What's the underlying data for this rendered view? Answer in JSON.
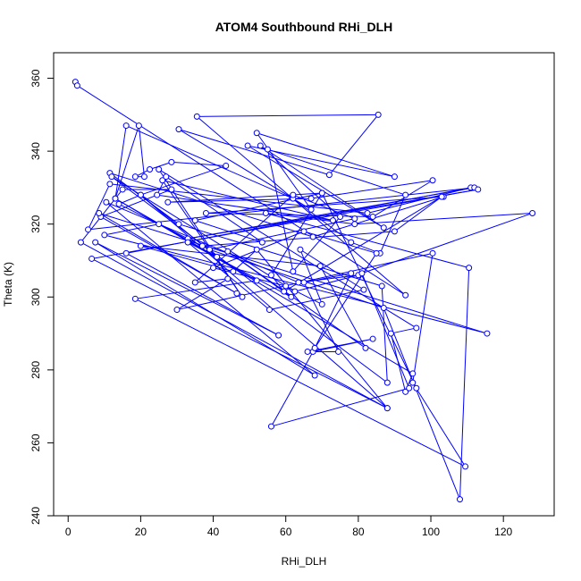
{
  "chart_data": {
    "type": "line",
    "title": "ATOM4 Southbound RHi_DLH",
    "xlabel": "RHi_DLH",
    "ylabel": "Theta (K)",
    "xlim": [
      -4,
      134
    ],
    "ylim": [
      240,
      367
    ],
    "xticks": [
      "0",
      "20",
      "40",
      "60",
      "80",
      "100",
      "120"
    ],
    "yticks": [
      "240",
      "260",
      "280",
      "300",
      "320",
      "340",
      "360"
    ],
    "xtick_values": [
      0,
      20,
      40,
      60,
      80,
      100,
      120
    ],
    "ytick_values": [
      240,
      260,
      280,
      300,
      320,
      340,
      360
    ],
    "grid": false,
    "color": "#0000ff",
    "marker": "open-circle",
    "series": [
      {
        "values": [
          [
            2,
            359
          ],
          [
            2.5,
            358
          ],
          [
            93,
            300.5
          ],
          [
            35.5,
            349.5
          ],
          [
            85.5,
            350
          ],
          [
            72,
            333.5
          ],
          [
            30.5,
            346
          ],
          [
            67,
            324
          ],
          [
            52,
            345
          ],
          [
            90,
            333
          ],
          [
            49.5,
            341.5
          ],
          [
            87,
            319
          ],
          [
            53,
            341.5
          ],
          [
            75,
            322
          ],
          [
            62,
            307
          ],
          [
            55,
            340.5
          ],
          [
            93,
            328
          ],
          [
            86,
            312
          ],
          [
            78,
            315
          ],
          [
            62,
            327
          ],
          [
            16,
            347
          ],
          [
            13,
            327
          ],
          [
            19.5,
            347
          ],
          [
            21,
            333
          ],
          [
            18.5,
            333
          ],
          [
            22.5,
            335
          ],
          [
            28.5,
            337
          ],
          [
            43.5,
            336
          ],
          [
            20,
            328
          ],
          [
            41,
            311
          ],
          [
            13,
            327
          ],
          [
            95,
            279
          ],
          [
            93,
            274
          ],
          [
            89,
            290
          ],
          [
            96,
            291.5
          ],
          [
            25,
            335
          ],
          [
            48,
            300
          ],
          [
            26,
            332
          ],
          [
            73,
            321
          ],
          [
            24.5,
            328
          ],
          [
            27,
            333
          ],
          [
            53.5,
            315
          ],
          [
            35,
            321
          ],
          [
            70,
            328.5
          ],
          [
            27.5,
            326
          ],
          [
            67,
            327
          ],
          [
            100.5,
            332
          ],
          [
            84,
            322
          ],
          [
            38,
            323
          ],
          [
            103.5,
            327.5
          ],
          [
            67.5,
            316.5
          ],
          [
            11.5,
            334
          ],
          [
            30.5,
            320
          ],
          [
            86.5,
            303
          ],
          [
            88,
            276.5
          ],
          [
            12,
            333
          ],
          [
            62.5,
            301.5
          ],
          [
            80,
            306
          ],
          [
            63.5,
            304
          ],
          [
            10.5,
            326
          ],
          [
            68,
            278.5
          ],
          [
            7.5,
            315
          ],
          [
            58,
            289.5
          ],
          [
            16,
            312
          ],
          [
            111,
            330
          ],
          [
            82.5,
            323
          ],
          [
            11.5,
            331
          ],
          [
            5.5,
            318.5
          ],
          [
            112,
            330
          ],
          [
            33,
            316
          ],
          [
            113,
            329.5
          ],
          [
            6.5,
            310.5
          ],
          [
            88,
            269.5
          ],
          [
            3.5,
            315
          ],
          [
            15,
            329.5
          ],
          [
            28.5,
            329.5
          ],
          [
            9,
            322
          ],
          [
            46.5,
            301
          ],
          [
            8.5,
            323
          ],
          [
            115.5,
            290
          ],
          [
            10,
            317
          ],
          [
            25,
            320
          ],
          [
            52,
            304.5
          ],
          [
            18.5,
            299.5
          ],
          [
            109.5,
            253.5
          ],
          [
            95,
            276.5
          ],
          [
            100.5,
            312
          ],
          [
            30,
            296.5
          ],
          [
            44,
            305
          ],
          [
            35,
            304
          ],
          [
            62,
            328
          ],
          [
            79,
            321.5
          ],
          [
            39,
            313
          ],
          [
            87,
            297
          ],
          [
            108,
            244.5
          ],
          [
            110.5,
            308
          ],
          [
            54.5,
            323
          ],
          [
            79,
            320
          ],
          [
            128,
            323
          ],
          [
            81,
            306.5
          ],
          [
            94,
            275
          ],
          [
            56,
            264.5
          ],
          [
            67.5,
            285
          ],
          [
            84,
            288.5
          ],
          [
            66,
            285
          ],
          [
            74.5,
            285
          ],
          [
            65,
            304
          ],
          [
            78,
            306.5
          ],
          [
            68,
            286
          ],
          [
            85,
            312
          ],
          [
            65,
            318
          ],
          [
            40,
            308
          ],
          [
            60,
            303
          ],
          [
            70,
            298
          ],
          [
            64,
            313
          ],
          [
            81.5,
            302
          ],
          [
            55.5,
            296.5
          ],
          [
            33,
            315
          ],
          [
            61.5,
            300
          ],
          [
            44,
            312.5
          ],
          [
            82,
            286
          ],
          [
            69.5,
            308.5
          ],
          [
            20,
            314
          ],
          [
            45.5,
            307
          ],
          [
            52,
            313
          ],
          [
            88,
            269.5
          ],
          [
            20,
            328
          ],
          [
            14,
            325.5
          ],
          [
            37,
            314
          ],
          [
            90,
            318
          ],
          [
            103,
            327.5
          ],
          [
            59.5,
            301.5
          ],
          [
            56,
            306
          ],
          [
            70,
            328.5
          ],
          [
            96,
            275
          ]
        ]
      }
    ]
  }
}
